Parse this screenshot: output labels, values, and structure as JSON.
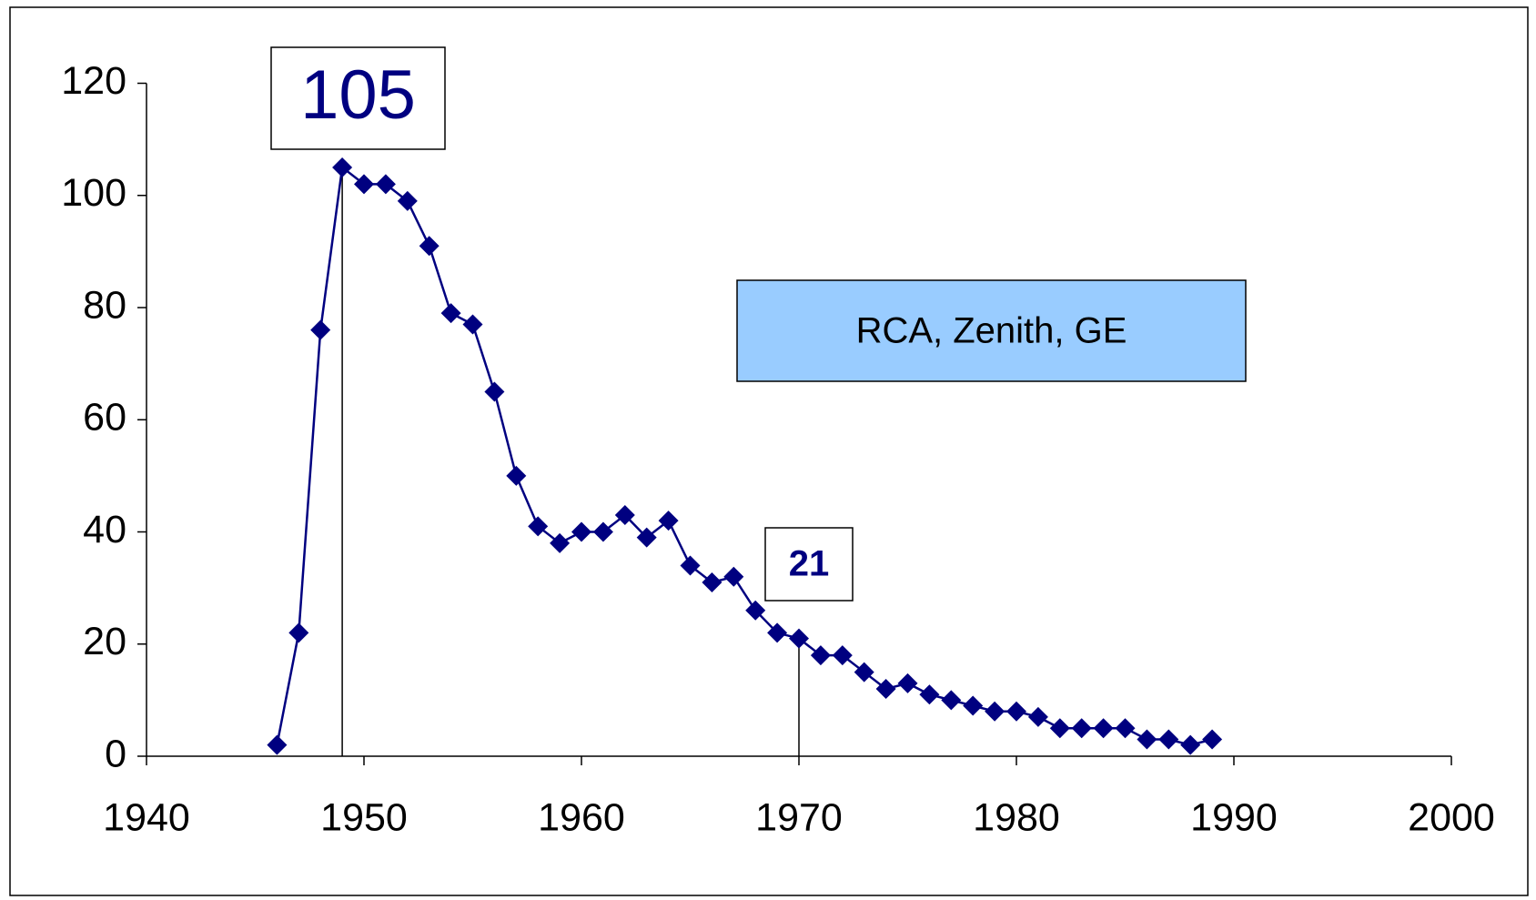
{
  "chart_data": {
    "type": "line",
    "x": [
      1946,
      1947,
      1948,
      1949,
      1950,
      1951,
      1952,
      1953,
      1954,
      1955,
      1956,
      1957,
      1958,
      1959,
      1960,
      1961,
      1962,
      1963,
      1964,
      1965,
      1966,
      1967,
      1968,
      1969,
      1970,
      1971,
      1972,
      1973,
      1974,
      1975,
      1976,
      1977,
      1978,
      1979,
      1980,
      1981,
      1982,
      1983,
      1984,
      1985,
      1986,
      1987,
      1988,
      1989
    ],
    "series": [
      {
        "color": "#000080",
        "values": [
          2,
          22,
          76,
          105,
          102,
          102,
          99,
          91,
          79,
          77,
          65,
          50,
          41,
          38,
          40,
          40,
          43,
          39,
          42,
          34,
          31,
          32,
          26,
          22,
          21,
          18,
          18,
          15,
          12,
          13,
          11,
          10,
          9,
          8,
          8,
          7,
          5,
          5,
          5,
          5,
          3,
          3,
          2,
          3
        ]
      }
    ],
    "xlim": [
      1940,
      2000
    ],
    "xticks": [
      1940,
      1950,
      1960,
      1970,
      1980,
      1990,
      2000
    ],
    "ylim": [
      0,
      120
    ],
    "yticks": [
      0,
      20,
      40,
      60,
      80,
      100,
      120
    ],
    "annotations": [
      {
        "label": "105",
        "x": 1949,
        "y": 105
      },
      {
        "label": "21",
        "x": 1970,
        "y": 21
      }
    ],
    "legend_note": "RCA, Zenith, GE"
  }
}
